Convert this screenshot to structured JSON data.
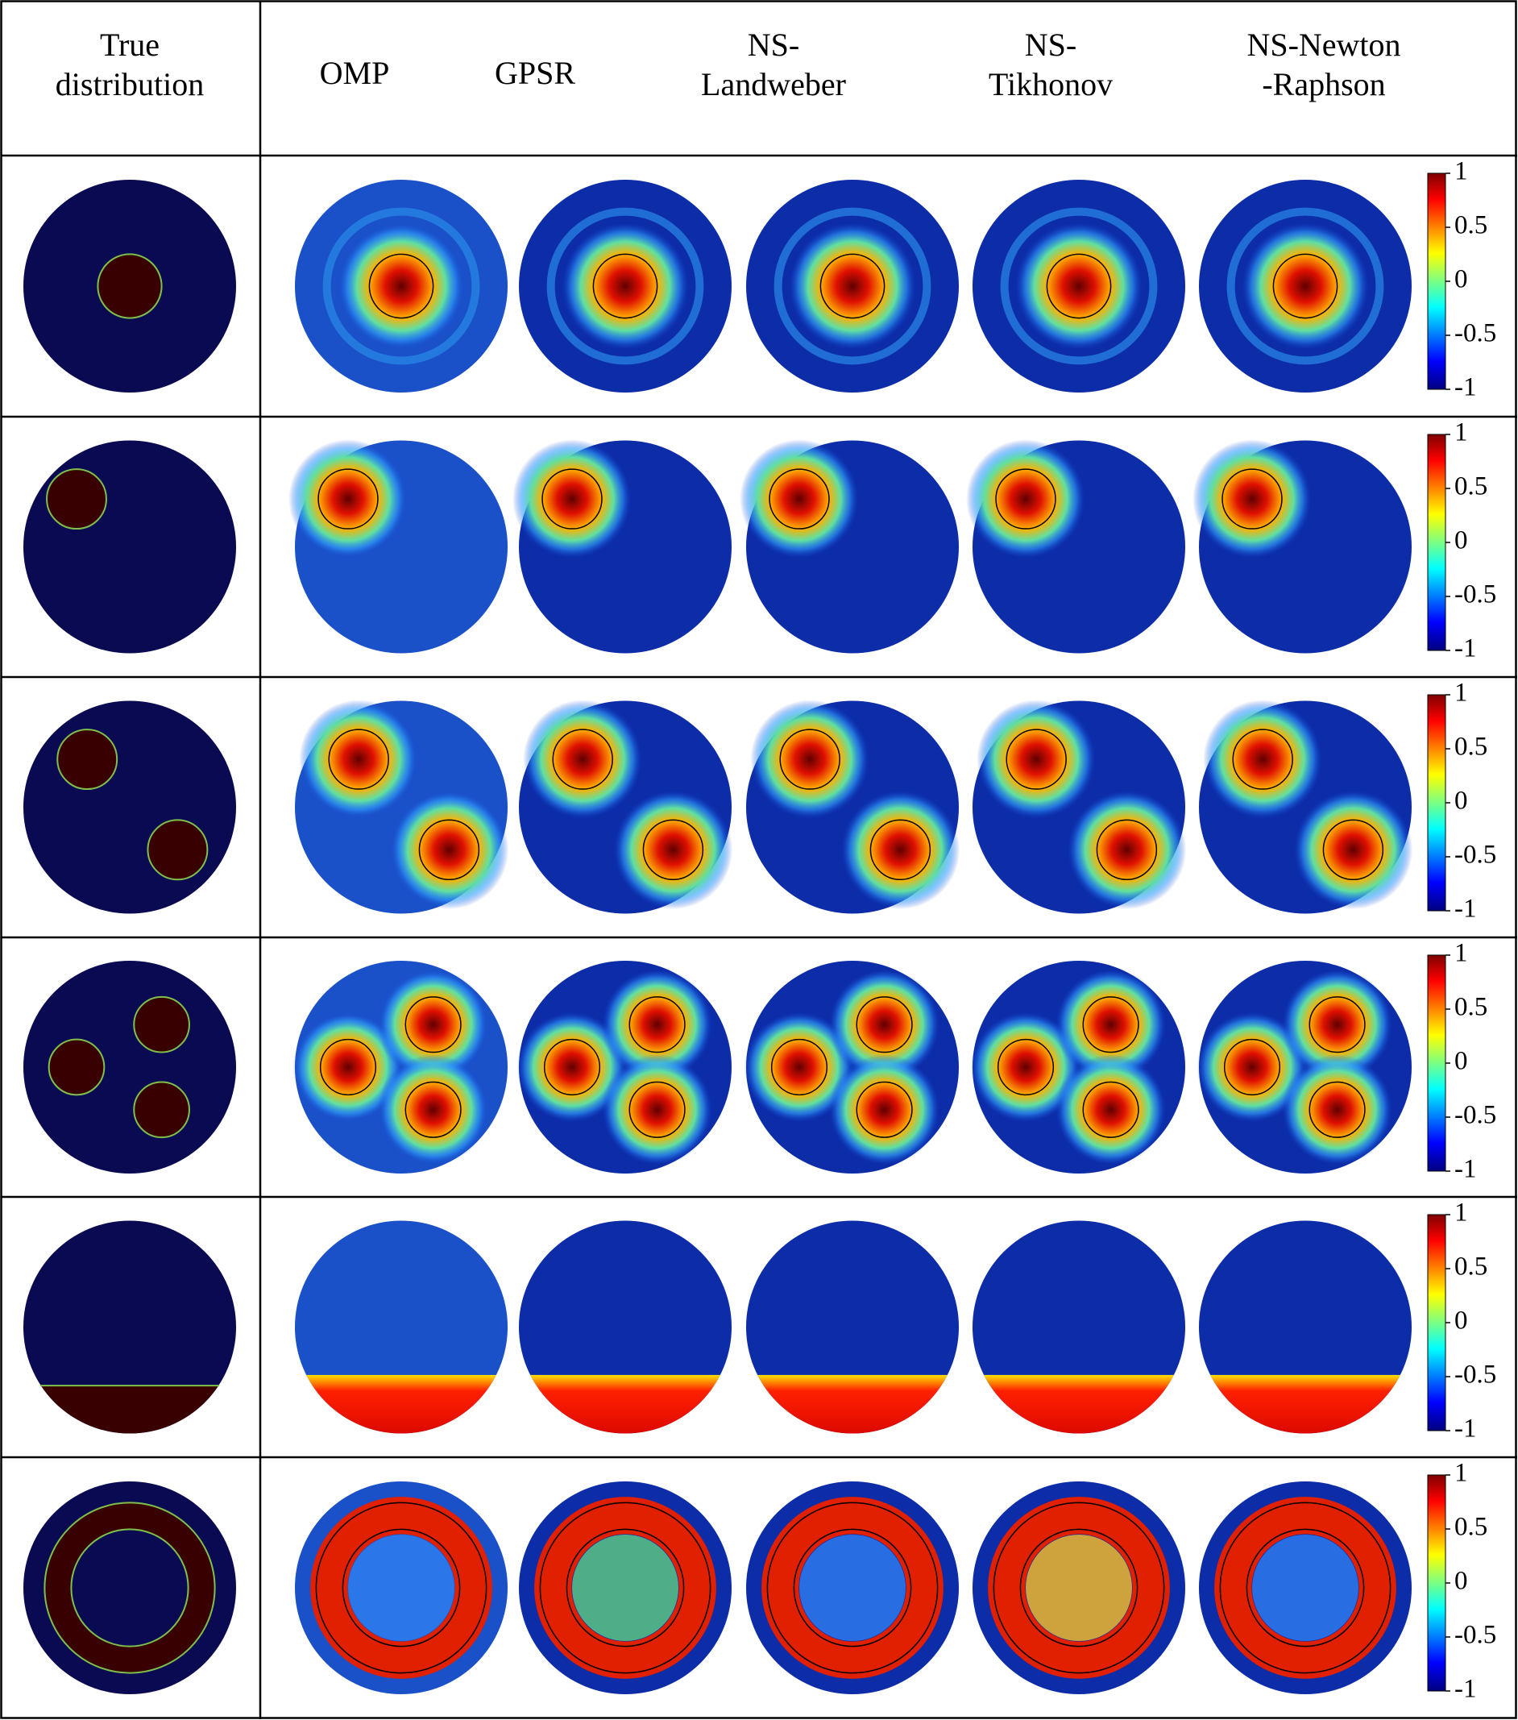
{
  "headers": [
    [
      "True",
      "distribution"
    ],
    [
      "OMP"
    ],
    [
      "GPSR"
    ],
    [
      "NS-",
      "Landweber"
    ],
    [
      "NS-",
      "Tikhonov"
    ],
    [
      "NS-Newton",
      "-Raphson"
    ]
  ],
  "colorbar_ticks": [
    1,
    0.5,
    0,
    -0.5,
    -1
  ]
}
